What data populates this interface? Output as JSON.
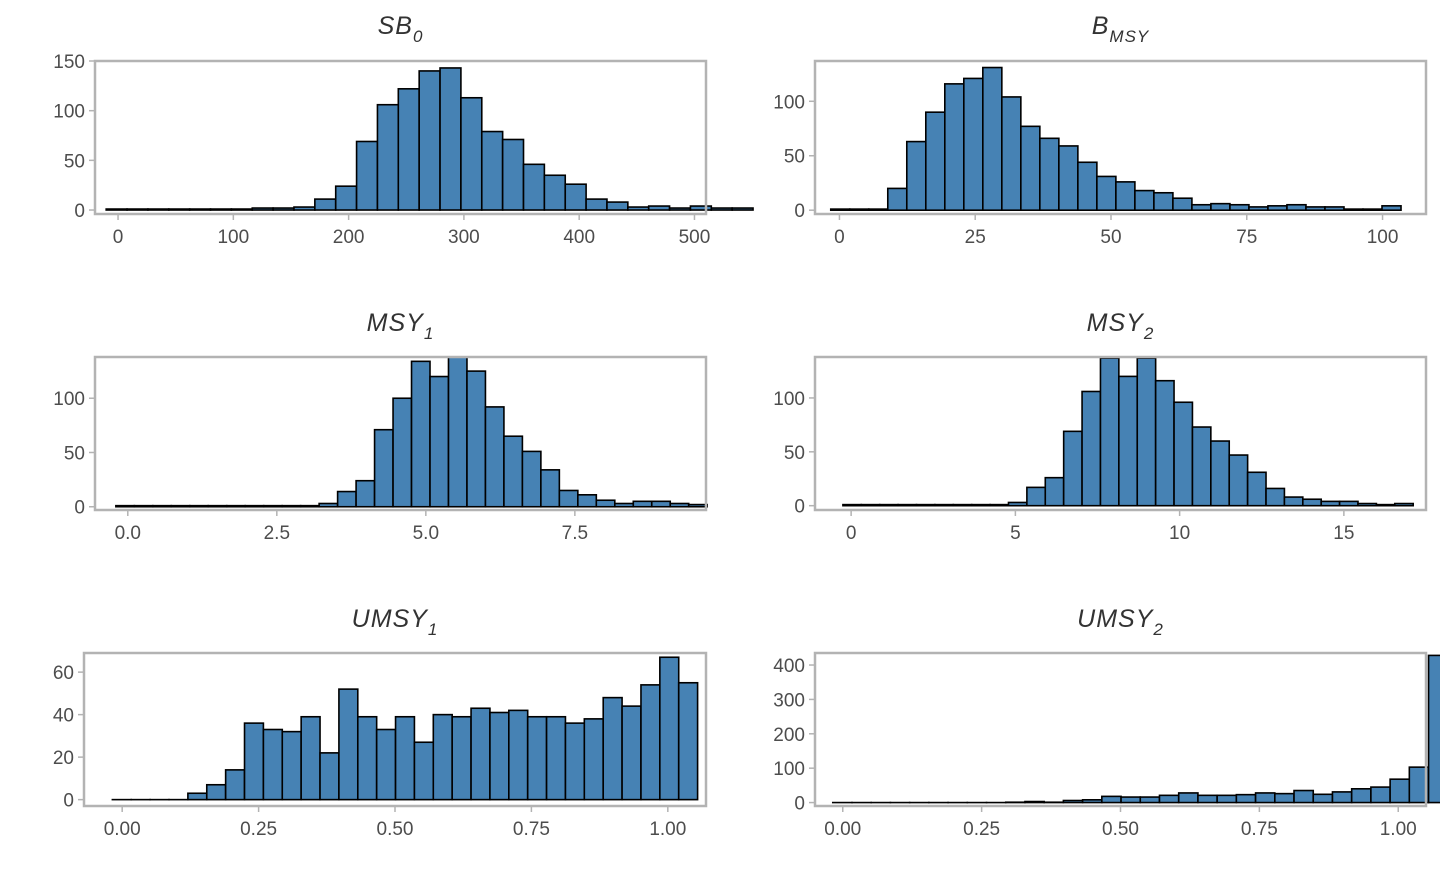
{
  "style": {
    "bar_fill": "#4682B4",
    "bar_stroke": "#000000",
    "panel_border": "#b3b3b3",
    "tick_text": "#4d4d4d",
    "title_text": "#333333"
  },
  "chart_data": [
    {
      "type": "bar",
      "title": "SB",
      "title_sub": "0",
      "xlabel": "",
      "ylabel": "",
      "bin_start": -10.3,
      "bin_width": 18.1,
      "values": [
        1,
        1,
        1,
        1,
        1,
        1,
        1,
        2,
        2,
        3,
        11,
        24,
        69,
        106,
        122,
        140,
        143,
        113,
        79,
        71,
        46,
        35,
        26,
        11,
        8,
        3,
        4,
        2,
        4,
        2,
        2
      ],
      "xlim": [
        -20,
        510
      ],
      "ylim": [
        -4,
        150
      ],
      "xticks": [
        0,
        100,
        200,
        300,
        400,
        500
      ],
      "xtick_labels": [
        "0",
        "100",
        "200",
        "300",
        "400",
        "500"
      ],
      "yticks": [
        0,
        50,
        100,
        150
      ],
      "ytick_labels": [
        "0",
        "50",
        "100",
        "150"
      ]
    },
    {
      "type": "bar",
      "title": "B",
      "title_sub": "MSY",
      "xlabel": "",
      "ylabel": "",
      "bin_start": -1.6,
      "bin_width": 3.5,
      "values": [
        1,
        1,
        1,
        20,
        63,
        90,
        116,
        121,
        131,
        104,
        77,
        66,
        59,
        44,
        31,
        26,
        18,
        16,
        11,
        5,
        6,
        5,
        3,
        4,
        5,
        3,
        3,
        1,
        1,
        4
      ],
      "xlim": [
        -4.5,
        108
      ],
      "ylim": [
        -3.5,
        137
      ],
      "xticks": [
        0,
        25,
        50,
        75,
        100
      ],
      "xtick_labels": [
        "0",
        "25",
        "50",
        "75",
        "100"
      ],
      "yticks": [
        0,
        50,
        100
      ],
      "ytick_labels": [
        "0",
        "50",
        "100"
      ]
    },
    {
      "type": "bar",
      "title": "MSY",
      "title_sub": "1",
      "xlabel": "",
      "ylabel": "",
      "bin_start": -0.2,
      "bin_width": 0.31,
      "values": [
        1,
        1,
        1,
        1,
        1,
        1,
        1,
        1,
        1,
        1,
        1,
        3,
        14,
        24,
        71,
        100,
        134,
        120,
        138,
        125,
        92,
        65,
        51,
        34,
        15,
        11,
        6,
        3,
        5,
        5,
        3,
        2
      ],
      "xlim": [
        -0.55,
        9.7
      ],
      "ylim": [
        -3,
        138
      ],
      "xticks": [
        0,
        2.5,
        5,
        7.5
      ],
      "xtick_labels": [
        "0.0",
        "2.5",
        "5.0",
        "7.5"
      ],
      "yticks": [
        0,
        50,
        100
      ],
      "ytick_labels": [
        "0",
        "50",
        "100"
      ]
    },
    {
      "type": "bar",
      "title": "MSY",
      "title_sub": "2",
      "xlabel": "",
      "ylabel": "",
      "bin_start": -0.25,
      "bin_width": 0.56,
      "values": [
        1,
        1,
        1,
        1,
        1,
        1,
        1,
        1,
        1,
        3,
        17,
        26,
        69,
        106,
        137,
        120,
        137,
        116,
        96,
        73,
        60,
        47,
        31,
        16,
        8,
        6,
        4,
        4,
        2,
        1,
        2
      ],
      "xlim": [
        -1.1,
        17.5
      ],
      "ylim": [
        -4,
        138
      ],
      "xticks": [
        0,
        5,
        10,
        15
      ],
      "xtick_labels": [
        "0",
        "5",
        "10",
        "15"
      ],
      "yticks": [
        0,
        50,
        100
      ],
      "ytick_labels": [
        "0",
        "50",
        "100"
      ]
    },
    {
      "type": "bar",
      "title": "UMSY",
      "title_sub": "1",
      "xlabel": "",
      "ylabel": "",
      "bin_start": -0.018,
      "bin_width": 0.0346,
      "values": [
        0,
        0,
        0,
        0,
        3,
        7,
        14,
        36,
        33,
        32,
        39,
        22,
        52,
        39,
        33,
        39,
        27,
        40,
        39,
        43,
        41,
        42,
        39,
        39,
        36,
        38,
        48,
        44,
        54,
        67,
        55
      ],
      "xlim": [
        -0.07,
        1.07
      ],
      "ylim": [
        -3,
        69
      ],
      "xticks": [
        0,
        0.25,
        0.5,
        0.75,
        1
      ],
      "xtick_labels": [
        "0.00",
        "0.25",
        "0.50",
        "0.75",
        "1.00"
      ],
      "yticks": [
        0,
        20,
        40,
        60
      ],
      "ytick_labels": [
        "0",
        "20",
        "40",
        "60"
      ]
    },
    {
      "type": "bar",
      "title": "UMSY",
      "title_sub": "2",
      "xlabel": "",
      "ylabel": "",
      "bin_start": -0.018,
      "bin_width": 0.0346,
      "values": [
        0,
        0,
        0,
        0,
        0,
        0,
        0,
        0,
        0,
        1,
        3,
        1,
        6,
        8,
        18,
        16,
        16,
        21,
        28,
        21,
        21,
        23,
        28,
        26,
        35,
        24,
        31,
        40,
        45,
        68,
        103,
        428
      ],
      "xlim": [
        -0.05,
        1.05
      ],
      "ylim": [
        -10,
        435
      ],
      "xticks": [
        0,
        0.25,
        0.5,
        0.75,
        1
      ],
      "xtick_labels": [
        "0.00",
        "0.25",
        "0.50",
        "0.75",
        "1.00"
      ],
      "yticks": [
        0,
        100,
        200,
        300,
        400
      ],
      "ytick_labels": [
        "0",
        "100",
        "200",
        "300",
        "400"
      ]
    }
  ]
}
